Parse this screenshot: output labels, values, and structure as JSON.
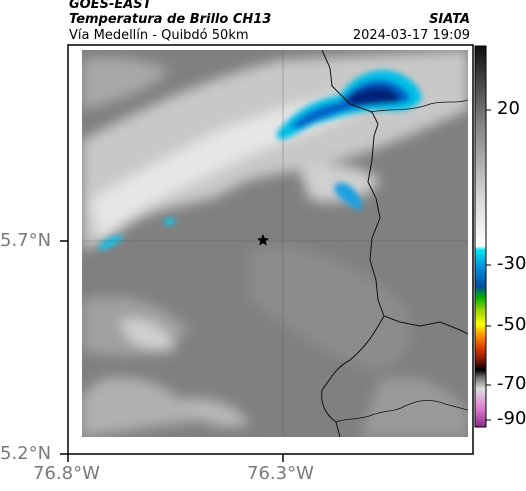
{
  "header": {
    "satellite": "GOES-EAST",
    "product": "Temperatura de Brillo CH13",
    "route": "Vía Medellín - Quibdó 50km",
    "org": "SIATA",
    "timestamp": "2024-03-17 19:09"
  },
  "axes": {
    "lat_ticks": [
      "5.7°N",
      "5.2°N"
    ],
    "lon_ticks": [
      "76.8°W",
      "76.3°W"
    ]
  },
  "colorbar": {
    "ticks": [
      "20",
      "-30",
      "-50",
      "-70",
      "-90"
    ]
  },
  "map": {
    "marker_icon": "star-icon",
    "cloud_color": "#0a2d9a",
    "ground_color": "#7f7f7f"
  }
}
